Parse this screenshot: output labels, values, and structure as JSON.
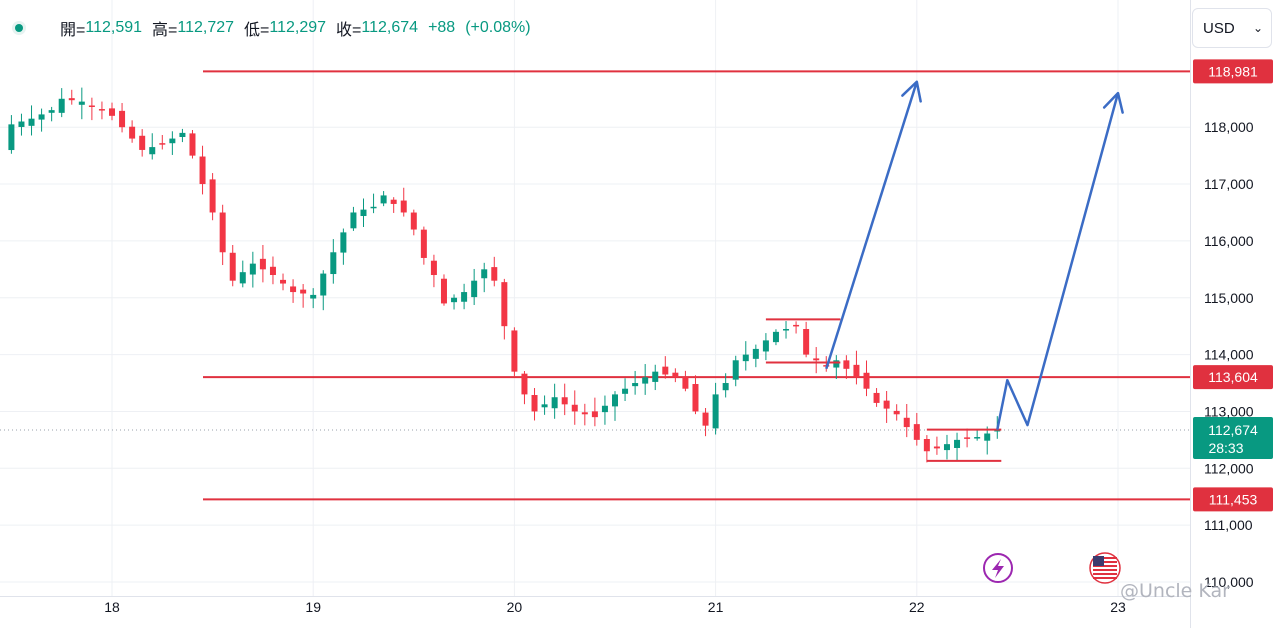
{
  "ohlc": {
    "open_label": "開=",
    "open": "112,591",
    "high_label": "高=",
    "high": "112,727",
    "low_label": "低=",
    "low": "112,297",
    "close_label": "收=",
    "close": "112,674",
    "change": "+88",
    "change_pct": "(+0.08%)"
  },
  "currency": {
    "label": "USD"
  },
  "watermark": "@Uncle Kar",
  "colors": {
    "up": "#089981",
    "down": "#f23645",
    "level": "#e0313f",
    "arrow": "#3b6cc5"
  },
  "chart_data": {
    "type": "candlestick",
    "y_ticks": [
      "110,000",
      "111,000",
      "112,000",
      "113,000",
      "114,000",
      "115,000",
      "116,000",
      "117,000",
      "118,000"
    ],
    "y_tick_values": [
      110000,
      111000,
      112000,
      113000,
      114000,
      115000,
      116000,
      117000,
      118000
    ],
    "ylim": [
      109950,
      119750
    ],
    "x_ticks": [
      "18",
      "19",
      "20",
      "21",
      "22",
      "23"
    ],
    "x_tick_values": [
      18,
      19,
      20,
      21,
      22,
      23
    ],
    "xlim": [
      17.45,
      23.36
    ],
    "grid": true,
    "levels": [
      {
        "value": 118981,
        "label": "118,981"
      },
      {
        "value": 113604,
        "label": "113,604"
      },
      {
        "value": 111453,
        "label": "111,453"
      }
    ],
    "current_price": {
      "value": 112674,
      "label": "112,674",
      "countdown": "28:33"
    },
    "candles_close_path": [
      [
        17.45,
        117600
      ],
      [
        17.5,
        118050
      ],
      [
        17.6,
        118150
      ],
      [
        17.7,
        118300
      ],
      [
        17.75,
        118500
      ],
      [
        17.85,
        118450
      ],
      [
        17.95,
        118300
      ],
      [
        18.0,
        118200
      ],
      [
        18.1,
        117800
      ],
      [
        18.15,
        117600
      ],
      [
        18.25,
        117700
      ],
      [
        18.35,
        117900
      ],
      [
        18.4,
        117500
      ],
      [
        18.45,
        117000
      ],
      [
        18.5,
        116500
      ],
      [
        18.55,
        115800
      ],
      [
        18.6,
        115300
      ],
      [
        18.7,
        115600
      ],
      [
        18.8,
        115400
      ],
      [
        18.9,
        115100
      ],
      [
        19.0,
        115050
      ],
      [
        19.1,
        115800
      ],
      [
        19.2,
        116500
      ],
      [
        19.3,
        116600
      ],
      [
        19.35,
        116800
      ],
      [
        19.45,
        116500
      ],
      [
        19.5,
        116200
      ],
      [
        19.55,
        115700
      ],
      [
        19.6,
        115400
      ],
      [
        19.65,
        114900
      ],
      [
        19.75,
        115100
      ],
      [
        19.85,
        115500
      ],
      [
        19.9,
        115300
      ],
      [
        19.95,
        114500
      ],
      [
        20.0,
        113700
      ],
      [
        20.05,
        113300
      ],
      [
        20.1,
        113000
      ],
      [
        20.2,
        113250
      ],
      [
        20.3,
        113000
      ],
      [
        20.4,
        112900
      ],
      [
        20.5,
        113300
      ],
      [
        20.6,
        113500
      ],
      [
        20.7,
        113700
      ],
      [
        20.8,
        113600
      ],
      [
        20.85,
        113400
      ],
      [
        20.9,
        113000
      ],
      [
        20.95,
        112750
      ],
      [
        21.0,
        113300
      ],
      [
        21.05,
        113500
      ],
      [
        21.1,
        113900
      ],
      [
        21.2,
        114100
      ],
      [
        21.3,
        114400
      ],
      [
        21.4,
        114500
      ],
      [
        21.45,
        114000
      ],
      [
        21.55,
        113800
      ],
      [
        21.6,
        113900
      ],
      [
        21.7,
        113600
      ],
      [
        21.75,
        113400
      ],
      [
        21.8,
        113150
      ],
      [
        21.9,
        112950
      ],
      [
        22.0,
        112500
      ],
      [
        22.05,
        112300
      ],
      [
        22.1,
        112350
      ],
      [
        22.2,
        112500
      ],
      [
        22.3,
        112550
      ],
      [
        22.4,
        112674
      ]
    ],
    "patterns": [
      {
        "type": "box",
        "x": [
          21.25,
          21.62
        ],
        "y": 113860,
        "top": 114620
      },
      {
        "type": "box",
        "x": [
          22.05,
          22.42
        ],
        "y": 112130,
        "top": 112680
      }
    ],
    "projections": [
      {
        "points": [
          [
            21.55,
            113750
          ],
          [
            22.0,
            118800
          ]
        ]
      },
      {
        "points": [
          [
            22.4,
            112680
          ],
          [
            22.45,
            113550
          ],
          [
            22.55,
            112760
          ],
          [
            23.0,
            118600
          ]
        ]
      }
    ],
    "indicator_icons": [
      "lightning-icon",
      "us-flag-icon"
    ]
  }
}
